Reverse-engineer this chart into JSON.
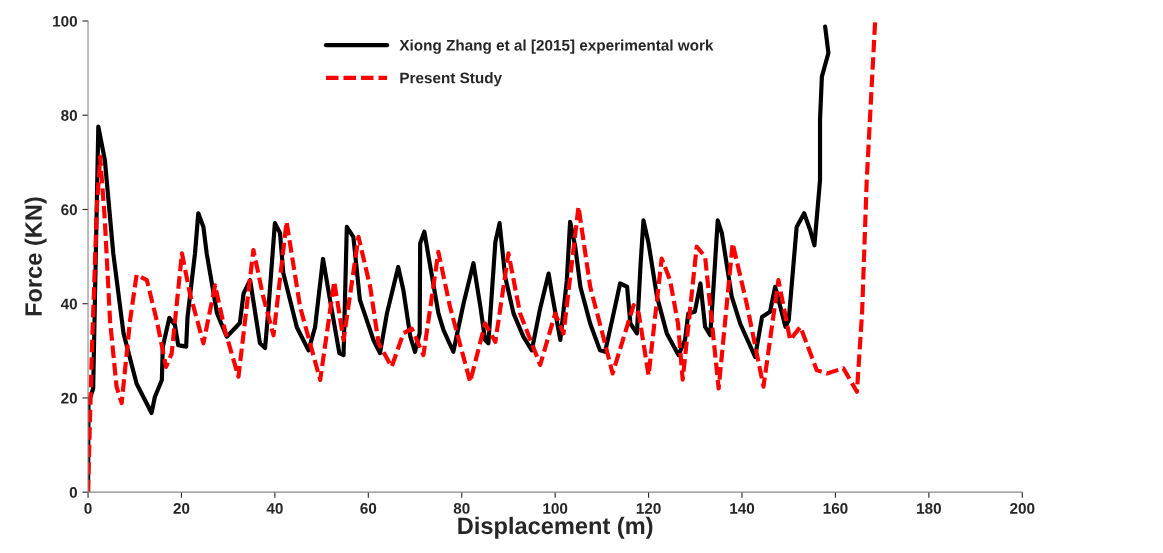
{
  "chart_data": {
    "type": "line",
    "xlabel": "Displacement (m)",
    "ylabel": "Force (KN)",
    "xlim": [
      0,
      200
    ],
    "ylim": [
      0,
      100
    ],
    "xticks": [
      0,
      20,
      40,
      60,
      80,
      100,
      120,
      140,
      160,
      180,
      200
    ],
    "yticks": [
      0,
      20,
      40,
      60,
      80,
      100
    ],
    "grid": false,
    "legend": "top",
    "marker": "none",
    "series": [
      {
        "name": "Xiong Zhang et al [2015] experimental work",
        "color": "#000000",
        "line_style": "solid",
        "x": [
          0,
          0.1,
          1.1,
          2.2,
          3.6,
          5.4,
          7.6,
          10.4,
          13.6,
          14.3,
          15.8,
          16,
          17.4,
          18.6,
          19.3,
          21,
          21.3,
          22.9,
          23.6,
          24.7,
          25.4,
          27.6,
          29.7,
          32.5,
          33.3,
          34.7,
          36.8,
          37.9,
          38.6,
          40,
          41.1,
          41.8,
          44.7,
          47.2,
          48.6,
          50.3,
          51.8,
          53.8,
          54.7,
          55.4,
          56.8,
          58.2,
          61.1,
          62.5,
          64,
          66.4,
          67.5,
          69,
          70,
          71,
          71.1,
          72,
          72.9,
          75,
          76.1,
          78.2,
          80.4,
          82.5,
          84,
          85,
          85.7,
          87.2,
          88.1,
          89.3,
          91.1,
          93.2,
          95,
          96.7,
          98.6,
          99.3,
          101.1,
          102.5,
          103.2,
          104.3,
          105.4,
          107.5,
          109.6,
          110.7,
          112.5,
          113.9,
          115.4,
          116.1,
          117.5,
          118.3,
          118.9,
          120,
          121.8,
          123.9,
          126.4,
          127.8,
          128.5,
          129.9,
          131.1,
          132.1,
          133.2,
          133.9,
          134.8,
          135.7,
          137.8,
          139.6,
          142.8,
          144.3,
          146,
          147.1,
          149.3,
          150,
          151.7,
          153.3,
          154.6,
          155.5,
          156.7,
          156.7,
          157.1,
          158.5,
          157.8
        ],
        "values": [
          0,
          19,
          22,
          77.6,
          70.5,
          50.7,
          33.7,
          23,
          16.8,
          20.2,
          23.8,
          30.8,
          37,
          35.5,
          31.2,
          30.9,
          37.2,
          50.7,
          59.2,
          56.3,
          50.7,
          38,
          33,
          35.9,
          42.2,
          45,
          31.6,
          30.6,
          38.6,
          57.1,
          55,
          46.5,
          35,
          30.1,
          35,
          49.5,
          40.8,
          29.5,
          29.1,
          56.3,
          54.2,
          40.8,
          32.3,
          29.5,
          38,
          47.8,
          42.9,
          33,
          29.8,
          33.8,
          52.8,
          55.3,
          50,
          38,
          34.4,
          29.8,
          40.1,
          48.6,
          39.3,
          32.3,
          31.6,
          53.1,
          57.1,
          45.7,
          37.9,
          33,
          30.1,
          38.6,
          46.4,
          42.2,
          32.3,
          45,
          57.4,
          52.1,
          43.6,
          35.8,
          30.1,
          29.8,
          37.9,
          44.3,
          43.6,
          35.8,
          33.7,
          48.6,
          57.7,
          52.8,
          41.5,
          33.7,
          29.1,
          32.3,
          37.9,
          38.3,
          44.3,
          35.1,
          33.3,
          43.6,
          57.7,
          54.9,
          41.5,
          35.8,
          28.7,
          37.2,
          38.3,
          43.6,
          35.1,
          36.5,
          56.3,
          59.2,
          55.6,
          52.4,
          66.2,
          79,
          88.2,
          93.2,
          98.8
        ]
      },
      {
        "name": "Present Study",
        "color": "#ff0000",
        "line_style": "dashed",
        "x": [
          0,
          0.8,
          1.9,
          2.6,
          3.6,
          4.7,
          6.1,
          7.2,
          9,
          10.4,
          12.6,
          14.7,
          16.7,
          17.9,
          20.1,
          21.8,
          24.7,
          27.2,
          29.3,
          32.2,
          35.4,
          37.5,
          39.7,
          42.5,
          45.4,
          49.7,
          52.7,
          54.7,
          57.9,
          60.4,
          62.2,
          65,
          67.5,
          69.3,
          71.8,
          75,
          77.5,
          81.8,
          85,
          87.2,
          90,
          92.5,
          96.8,
          100,
          101.8,
          105,
          107.5,
          110.3,
          112.3,
          116.8,
          117.9,
          120,
          122.8,
          124.6,
          126.3,
          127.3,
          130.3,
          132.1,
          135,
          138,
          141,
          144.6,
          147.8,
          150.3,
          152.5,
          156,
          158.2,
          161.7,
          164.6,
          165.7,
          166.7,
          168.5
        ],
        "values": [
          0,
          29.5,
          60.6,
          71.2,
          57.7,
          36.5,
          22.4,
          18.9,
          36.5,
          46.1,
          45,
          36.5,
          26.6,
          29.4,
          50.7,
          42.2,
          31.6,
          43.9,
          34.4,
          24.5,
          51.4,
          41.5,
          33.3,
          57.4,
          39.3,
          23.8,
          44.7,
          32.3,
          54.2,
          43.6,
          31.6,
          26.6,
          33.7,
          34.7,
          29.1,
          51,
          39.3,
          23.4,
          35.8,
          31.9,
          50.7,
          37.9,
          27,
          37.9,
          33.7,
          60.6,
          43.6,
          33,
          25.2,
          39.7,
          37.9,
          24.8,
          49.6,
          45,
          35.8,
          23.9,
          52.1,
          50,
          22,
          52.8,
          40,
          22.4,
          45,
          32.3,
          35.1,
          25.9,
          25.2,
          26.3,
          21.3,
          37.9,
          66.2,
          100
        ]
      }
    ]
  }
}
